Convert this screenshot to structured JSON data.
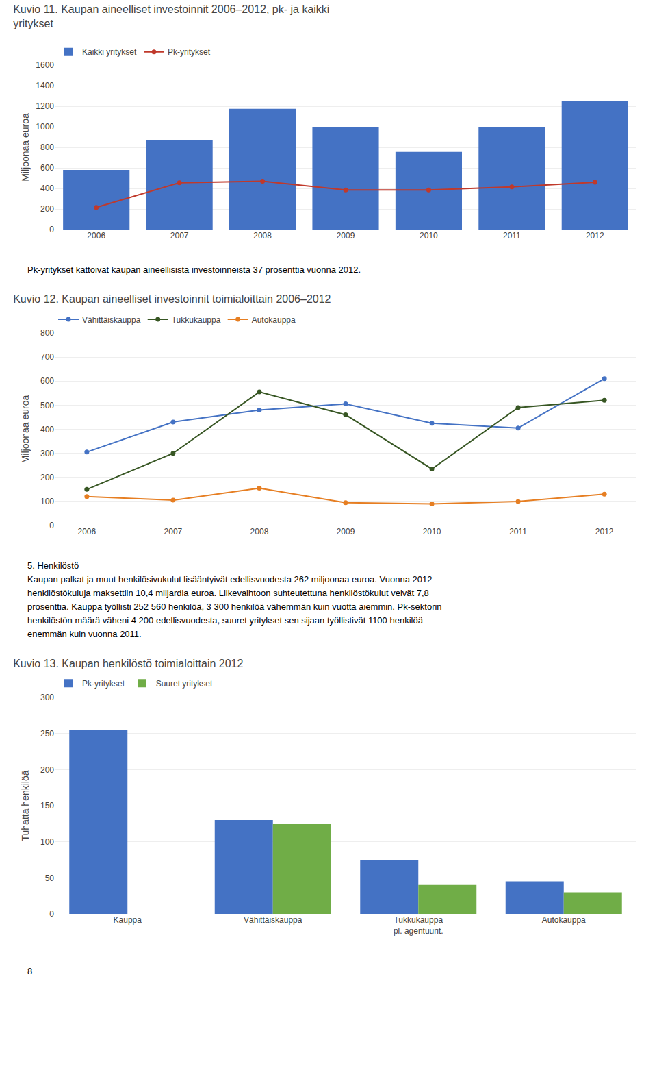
{
  "chart_data": [
    {
      "type": "bar",
      "title": "Kuvio 11. Kaupan aineelliset investoinnit 2006–2012, pk- ja kaikki\nyritykset",
      "ylabel": "Miljoonaa euroa",
      "categories": [
        "2006",
        "2007",
        "2008",
        "2009",
        "2010",
        "2011",
        "2012"
      ],
      "series": [
        {
          "name": "Kaikki yritykset",
          "type": "bar",
          "color": "#4472C4",
          "values": [
            580,
            870,
            1175,
            995,
            755,
            1000,
            1250
          ]
        },
        {
          "name": "Pk-yritykset",
          "type": "line",
          "marker": "circle",
          "color": "#C0392B",
          "values": [
            215,
            455,
            470,
            385,
            385,
            415,
            460
          ]
        }
      ],
      "ylim": [
        0,
        1600
      ],
      "yticks": [
        0,
        200,
        400,
        600,
        800,
        1000,
        1200,
        1400,
        1600
      ],
      "grid": true,
      "legend": "top",
      "annotations": [
        "Pk-yritykset kattoivat kaupan aineellisista investoinneista 37 prosenttia vuonna 2012."
      ]
    },
    {
      "type": "line",
      "title": "Kuvio 12. Kaupan aineelliset investoinnit toimialoittain 2006–2012",
      "ylabel": "Miljoonaa euroa",
      "categories": [
        "2006",
        "2007",
        "2008",
        "2009",
        "2010",
        "2011",
        "2012"
      ],
      "series": [
        {
          "name": "Vähittäiskauppa",
          "marker": "circle",
          "color": "#4472C4",
          "values": [
            305,
            430,
            480,
            505,
            425,
            405,
            610
          ]
        },
        {
          "name": "Tukkukauppa",
          "marker": "circle",
          "color": "#375623",
          "values": [
            150,
            300,
            555,
            460,
            235,
            490,
            520
          ]
        },
        {
          "name": "Autokauppa",
          "marker": "circle",
          "color": "#E67E22",
          "values": [
            120,
            105,
            155,
            95,
            90,
            100,
            130
          ]
        }
      ],
      "ylim": [
        0,
        800
      ],
      "yticks": [
        0,
        100,
        200,
        300,
        400,
        500,
        600,
        700,
        800
      ],
      "grid": true,
      "legend": "top",
      "annotations": [
        "5. Henkilöstö",
        "Kaupan palkat ja muut henkilösivukulut lisääntyivät edellisvuodesta 262 miljoonaa euroa. Vuonna 2012",
        "henkilöstökuluja maksettiin 10,4 miljardia euroa. Liikevaihtoon suhteutettuna henkilöstökulut veivät 7,8",
        "prosenttia. Kauppa työllisti 252 560 henkilöä, 3 300 henkilöä vähemmän kuin vuotta aiemmin. Pk-sektorin",
        "henkilöstön määrä väheni 4 200 edellisvuodesta, suuret yritykset sen sijaan työllistivät 1100 henkilöä",
        "enemmän kuin vuonna 2011."
      ]
    },
    {
      "type": "bar",
      "title": "Kuvio 13. Kaupan henkilöstö toimialoittain 2012",
      "ylabel": "Tuhatta henkilöä",
      "categories": [
        "Kauppa",
        "Vähittäiskauppa",
        "Tukkukauppa\npl. agentuurit.",
        "Autokauppa"
      ],
      "series": [
        {
          "name": "Pk-yritykset",
          "color": "#4472C4",
          "values": [
            255,
            130,
            75,
            45
          ]
        },
        {
          "name": "Suuret yritykset",
          "color": "#70AD47",
          "values": [
            0,
            125,
            40,
            30
          ]
        }
      ],
      "ylim": [
        0,
        300
      ],
      "yticks": [
        0,
        50,
        100,
        150,
        200,
        250,
        300
      ],
      "grid": true,
      "legend": "top",
      "annotations": [
        "8"
      ]
    }
  ]
}
